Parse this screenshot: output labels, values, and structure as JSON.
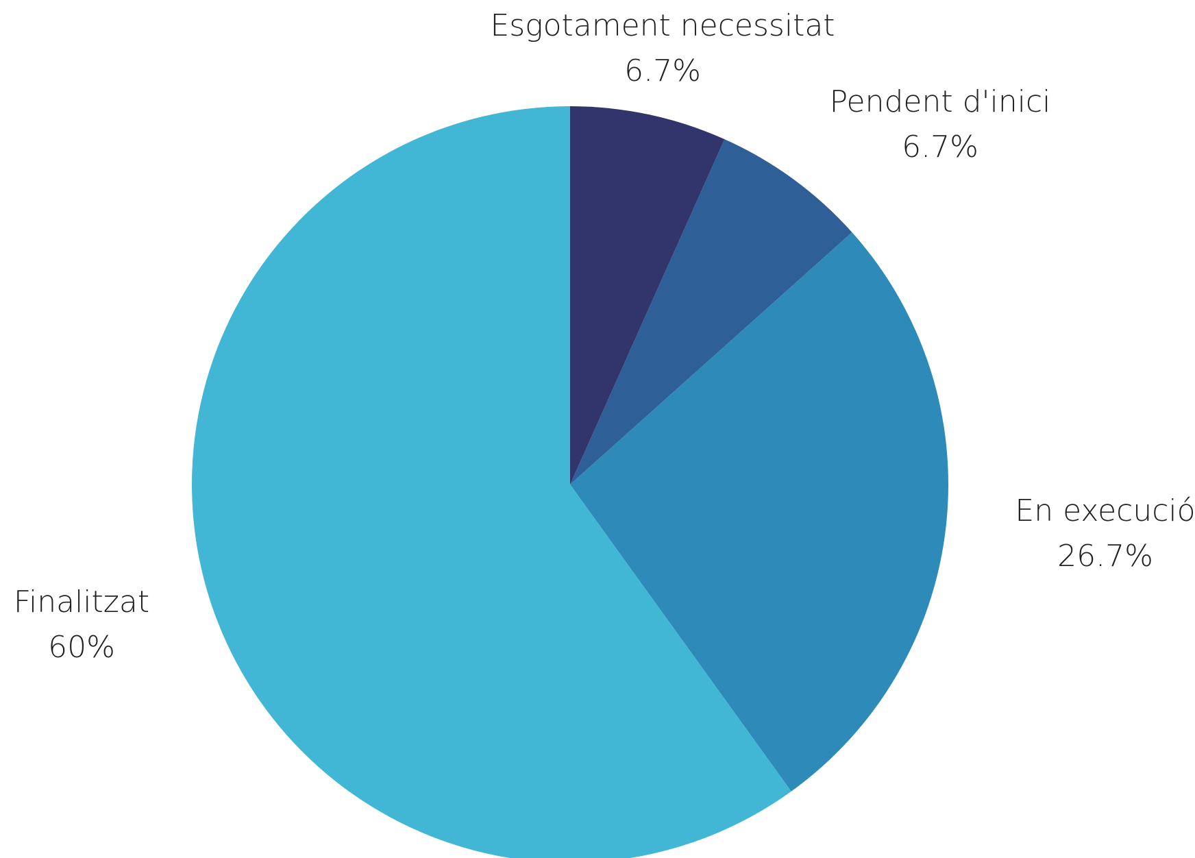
{
  "chart_data": {
    "type": "pie",
    "slices": [
      {
        "label": "Esgotament necessitat",
        "value": 6.7,
        "value_label": "6.7%",
        "color": "#31356b"
      },
      {
        "label": "Pendent d'inici",
        "value": 6.7,
        "value_label": "6.7%",
        "color": "#2f5f97"
      },
      {
        "label": "En execució",
        "value": 26.7,
        "value_label": "26.7%",
        "color": "#2e8bb9"
      },
      {
        "label": "Finalitzat",
        "value": 60,
        "value_label": "60%",
        "color": "#42b6d5"
      }
    ],
    "start": "12 o'clock",
    "direction": "clockwise",
    "legend": "none"
  }
}
